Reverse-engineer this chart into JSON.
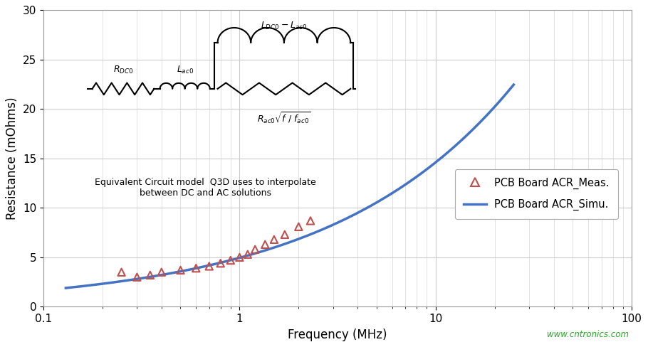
{
  "ylabel": "Resistance (mOhms)",
  "xlabel": "Frequency (MHz)",
  "ylim": [
    0,
    30
  ],
  "xlim": [
    0.1,
    100
  ],
  "yticks": [
    0,
    5,
    10,
    15,
    20,
    25,
    30
  ],
  "bg_color": "#ffffff",
  "grid_color": "#cccccc",
  "sim_color": "#4472C4",
  "meas_color": "#C0504D",
  "meas_x": [
    0.25,
    0.3,
    0.35,
    0.4,
    0.5,
    0.6,
    0.7,
    0.8,
    0.9,
    1.0,
    1.1,
    1.2,
    1.35,
    1.5,
    1.7,
    2.0,
    2.3
  ],
  "meas_y": [
    3.5,
    3.0,
    3.2,
    3.5,
    3.7,
    3.9,
    4.1,
    4.4,
    4.7,
    5.0,
    5.3,
    5.8,
    6.3,
    6.8,
    7.3,
    8.1,
    8.7
  ],
  "sim_x_start": 0.13,
  "sim_x_end": 25,
  "sim_a": 4.95,
  "sim_n": 0.47,
  "watermark": "www.cntronics.com",
  "legend_meas": "PCB Board ACR_Meas.",
  "legend_simu": "PCB Board ACR_Simu.",
  "circuit_text1": "Equivalent Circuit model  Q3D uses to interpolate",
  "circuit_text2": "between DC and AC solutions"
}
